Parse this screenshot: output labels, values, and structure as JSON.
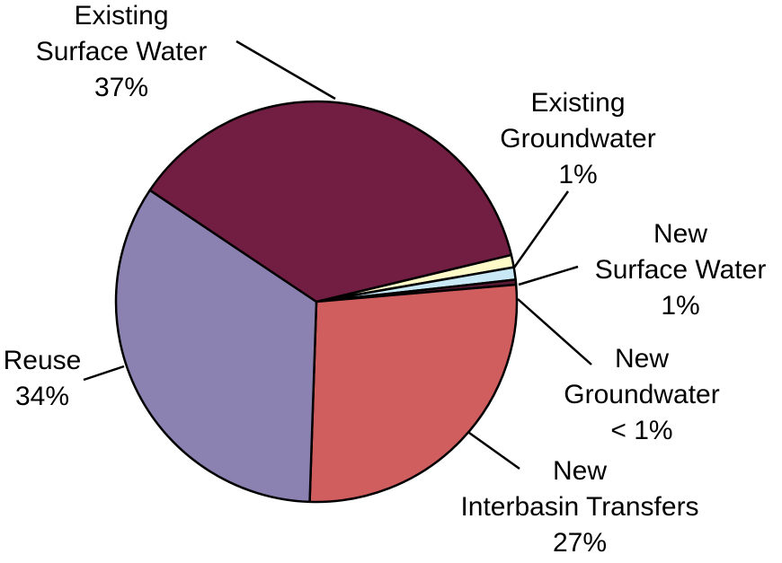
{
  "chart_data": {
    "type": "pie",
    "title": "",
    "legend": "none",
    "slices": [
      {
        "lines": [
          "Existing",
          "Surface Water"
        ],
        "pct_label": "37%",
        "value": 37,
        "color": "#721D42"
      },
      {
        "lines": [
          "Existing",
          "Groundwater"
        ],
        "pct_label": "1%",
        "value": 1,
        "color": "#FFFBC8"
      },
      {
        "lines": [
          "New",
          "Surface Water"
        ],
        "pct_label": "1%",
        "value": 1,
        "color": "#C9E8F5"
      },
      {
        "lines": [
          "New",
          "Groundwater"
        ],
        "pct_label": "< 1%",
        "value": 0.4,
        "color": "#5B1A36"
      },
      {
        "lines": [
          "New",
          "Interbasin Transfers"
        ],
        "pct_label": "27%",
        "value": 27,
        "color": "#D15E5F"
      },
      {
        "lines": [
          "Reuse"
        ],
        "pct_label": "34%",
        "value": 34,
        "color": "#8B82B2"
      }
    ]
  }
}
